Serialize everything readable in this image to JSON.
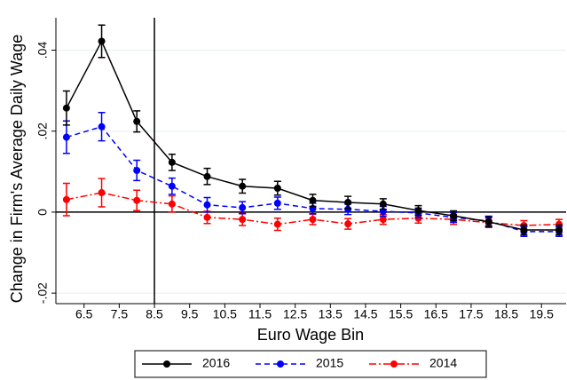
{
  "chart_data": {
    "type": "line",
    "x_label": "Euro Wage Bin",
    "y_label": "Change in Firm's Average Daily Wage",
    "x": [
      6,
      7,
      8,
      9,
      10,
      11,
      12,
      13,
      14,
      15,
      16,
      17,
      18,
      19,
      20
    ],
    "series": [
      {
        "name": "2016",
        "color": "#000000",
        "dash": "solid",
        "values": [
          0.0257,
          0.0422,
          0.0224,
          0.0123,
          0.0088,
          0.0064,
          0.0059,
          0.0029,
          0.0024,
          0.002,
          0.0004,
          -0.0009,
          -0.0024,
          -0.0044,
          -0.0044
        ],
        "errors": [
          0.0042,
          0.004,
          0.0026,
          0.002,
          0.002,
          0.0017,
          0.0017,
          0.0015,
          0.0015,
          0.0013,
          0.0012,
          0.0012,
          0.0012,
          0.0012,
          0.0012
        ]
      },
      {
        "name": "2015",
        "color": "#0000ff",
        "dash": "dashed",
        "values": [
          0.0185,
          0.0211,
          0.0103,
          0.0064,
          0.0018,
          0.0011,
          0.0022,
          0.0009,
          0.0007,
          0.0002,
          -0.0002,
          -0.0013,
          -0.0022,
          -0.0048,
          -0.0048
        ],
        "errors": [
          0.004,
          0.0035,
          0.0025,
          0.002,
          0.0018,
          0.0015,
          0.0015,
          0.0013,
          0.0013,
          0.0012,
          0.0012,
          0.0012,
          0.0012,
          0.0012,
          0.0012
        ]
      },
      {
        "name": "2014",
        "color": "#ff0000",
        "dash": "dashdot",
        "values": [
          0.0031,
          0.0048,
          0.0029,
          0.002,
          -0.0013,
          -0.0018,
          -0.003,
          -0.0018,
          -0.0029,
          -0.0018,
          -0.0015,
          -0.0018,
          -0.0026,
          -0.0033,
          -0.003
        ],
        "errors": [
          0.004,
          0.0035,
          0.0025,
          0.002,
          0.0015,
          0.0015,
          0.0015,
          0.0013,
          0.0013,
          0.0012,
          0.0012,
          0.0012,
          0.0012,
          0.0012,
          0.0012
        ]
      }
    ],
    "xlim": [
      5.7,
      20.2
    ],
    "xticks": [
      6.5,
      7.5,
      8.5,
      9.5,
      10.5,
      11.5,
      12.5,
      13.5,
      14.5,
      15.5,
      16.5,
      17.5,
      18.5,
      19.5
    ],
    "ylim": [
      -0.0226,
      0.048
    ],
    "yticks": [
      {
        "value": -0.02,
        "label": "-.02"
      },
      0,
      {
        "value": 0.02,
        "label": ".02"
      },
      {
        "value": 0.04,
        "label": ".04"
      }
    ],
    "vline": 8.5,
    "grid": true
  }
}
